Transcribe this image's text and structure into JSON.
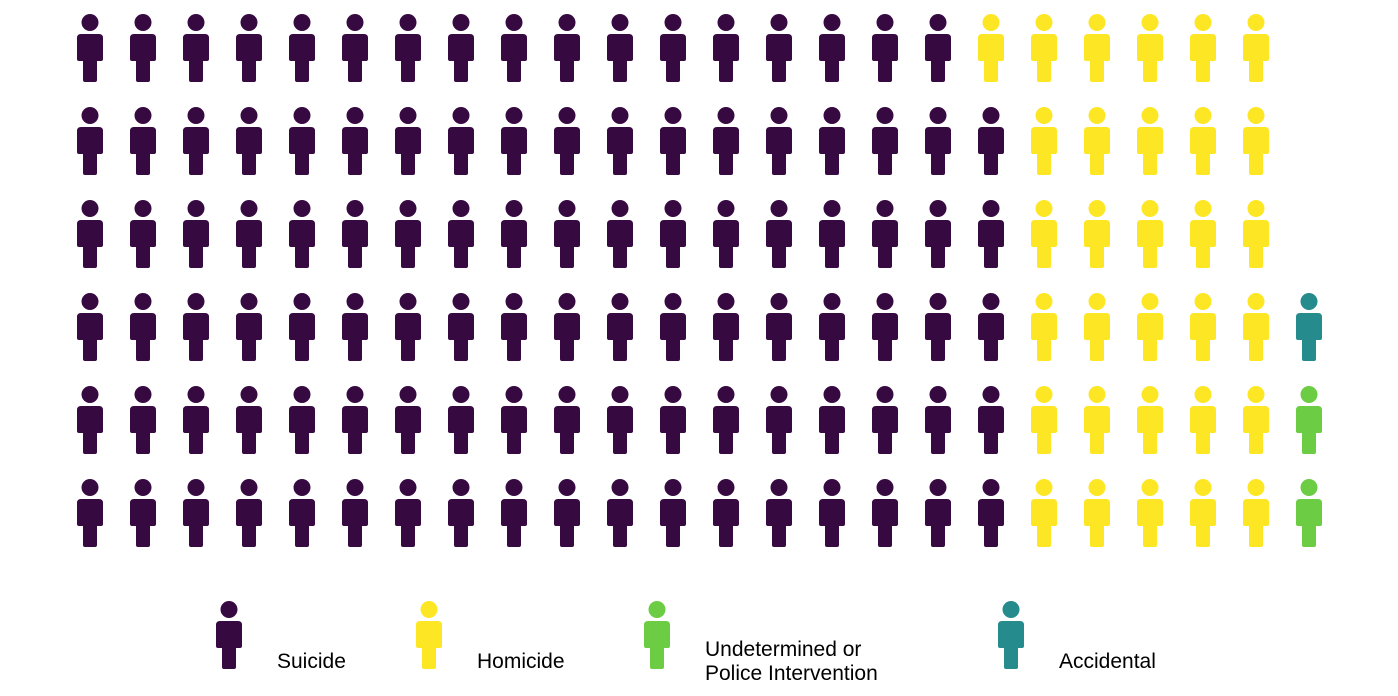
{
  "chart_data": {
    "type": "waffle",
    "title": "",
    "categories": [
      "Suicide",
      "Homicide",
      "Undetermined or Police Intervention",
      "Accidental"
    ],
    "rows": 6,
    "icon": "person-icon",
    "grid": [
      [
        "Suicide",
        "Suicide",
        "Suicide",
        "Suicide",
        "Suicide",
        "Suicide",
        "Suicide",
        "Suicide",
        "Suicide",
        "Suicide",
        "Suicide",
        "Suicide",
        "Suicide",
        "Suicide",
        "Suicide",
        "Suicide",
        "Suicide",
        "Homicide",
        "Homicide",
        "Homicide",
        "Homicide",
        "Homicide",
        "Homicide"
      ],
      [
        "Suicide",
        "Suicide",
        "Suicide",
        "Suicide",
        "Suicide",
        "Suicide",
        "Suicide",
        "Suicide",
        "Suicide",
        "Suicide",
        "Suicide",
        "Suicide",
        "Suicide",
        "Suicide",
        "Suicide",
        "Suicide",
        "Suicide",
        "Suicide",
        "Homicide",
        "Homicide",
        "Homicide",
        "Homicide",
        "Homicide"
      ],
      [
        "Suicide",
        "Suicide",
        "Suicide",
        "Suicide",
        "Suicide",
        "Suicide",
        "Suicide",
        "Suicide",
        "Suicide",
        "Suicide",
        "Suicide",
        "Suicide",
        "Suicide",
        "Suicide",
        "Suicide",
        "Suicide",
        "Suicide",
        "Suicide",
        "Homicide",
        "Homicide",
        "Homicide",
        "Homicide",
        "Homicide"
      ],
      [
        "Suicide",
        "Suicide",
        "Suicide",
        "Suicide",
        "Suicide",
        "Suicide",
        "Suicide",
        "Suicide",
        "Suicide",
        "Suicide",
        "Suicide",
        "Suicide",
        "Suicide",
        "Suicide",
        "Suicide",
        "Suicide",
        "Suicide",
        "Suicide",
        "Homicide",
        "Homicide",
        "Homicide",
        "Homicide",
        "Homicide",
        "Accidental"
      ],
      [
        "Suicide",
        "Suicide",
        "Suicide",
        "Suicide",
        "Suicide",
        "Suicide",
        "Suicide",
        "Suicide",
        "Suicide",
        "Suicide",
        "Suicide",
        "Suicide",
        "Suicide",
        "Suicide",
        "Suicide",
        "Suicide",
        "Suicide",
        "Suicide",
        "Homicide",
        "Homicide",
        "Homicide",
        "Homicide",
        "Homicide",
        "Undetermined or Police Intervention"
      ],
      [
        "Suicide",
        "Suicide",
        "Suicide",
        "Suicide",
        "Suicide",
        "Suicide",
        "Suicide",
        "Suicide",
        "Suicide",
        "Suicide",
        "Suicide",
        "Suicide",
        "Suicide",
        "Suicide",
        "Suicide",
        "Suicide",
        "Suicide",
        "Suicide",
        "Homicide",
        "Homicide",
        "Homicide",
        "Homicide",
        "Homicide",
        "Undetermined or Police Intervention"
      ]
    ],
    "counts": {
      "Suicide": 107,
      "Homicide": 31,
      "Undetermined or Police Intervention": 2,
      "Accidental": 1
    },
    "colors": {
      "Suicide": "#360a41",
      "Homicide": "#fde725",
      "Undetermined or Police Intervention": "#6ccd44",
      "Accidental": "#268b8c"
    },
    "legend": {
      "position": "bottom",
      "items": [
        {
          "key": "Suicide",
          "label_lines": [
            "Suicide"
          ]
        },
        {
          "key": "Homicide",
          "label_lines": [
            "Homicide"
          ]
        },
        {
          "key": "Undetermined or Police Intervention",
          "label_lines": [
            "Undetermined or",
            "Police Intervention"
          ]
        },
        {
          "key": "Accidental",
          "label_lines": [
            "Accidental"
          ]
        }
      ]
    }
  }
}
